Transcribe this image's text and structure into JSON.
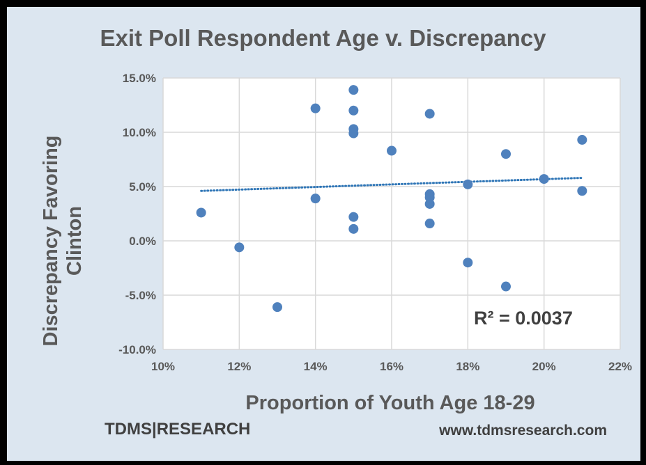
{
  "chart_data": {
    "type": "scatter",
    "title": "Exit Poll Respondent Age v. Discrepancy",
    "xlabel": "Proportion of Youth Age 18-29",
    "ylabel": "Discrepancy Favoring Clinton",
    "xlim": [
      0.1,
      0.22
    ],
    "ylim": [
      -0.1,
      0.15
    ],
    "x_ticks": [
      "10%",
      "12%",
      "14%",
      "16%",
      "18%",
      "20%",
      "22%"
    ],
    "x_tick_values": [
      0.1,
      0.12,
      0.14,
      0.16,
      0.18,
      0.2,
      0.22
    ],
    "y_ticks": [
      "15.0%",
      "10.0%",
      "5.0%",
      "0.0%",
      "-5.0%",
      "-10.0%"
    ],
    "y_tick_values": [
      0.15,
      0.1,
      0.05,
      0.0,
      -0.05,
      -0.1
    ],
    "grid": true,
    "series": [
      {
        "points": [
          {
            "x": 0.11,
            "y": 0.026
          },
          {
            "x": 0.12,
            "y": -0.006
          },
          {
            "x": 0.13,
            "y": -0.061
          },
          {
            "x": 0.14,
            "y": 0.122
          },
          {
            "x": 0.14,
            "y": 0.039
          },
          {
            "x": 0.15,
            "y": 0.139
          },
          {
            "x": 0.15,
            "y": 0.12
          },
          {
            "x": 0.15,
            "y": 0.103
          },
          {
            "x": 0.15,
            "y": 0.099
          },
          {
            "x": 0.15,
            "y": 0.022
          },
          {
            "x": 0.15,
            "y": 0.011
          },
          {
            "x": 0.16,
            "y": 0.083
          },
          {
            "x": 0.17,
            "y": 0.117
          },
          {
            "x": 0.17,
            "y": 0.043
          },
          {
            "x": 0.17,
            "y": 0.04
          },
          {
            "x": 0.17,
            "y": 0.034
          },
          {
            "x": 0.17,
            "y": 0.016
          },
          {
            "x": 0.18,
            "y": 0.052
          },
          {
            "x": 0.18,
            "y": -0.02
          },
          {
            "x": 0.19,
            "y": 0.08
          },
          {
            "x": 0.19,
            "y": -0.042
          },
          {
            "x": 0.2,
            "y": 0.057
          },
          {
            "x": 0.21,
            "y": 0.093
          },
          {
            "x": 0.21,
            "y": 0.046
          }
        ],
        "color": "#4f81bd"
      }
    ],
    "trendline": {
      "type": "linear",
      "x": [
        0.11,
        0.21
      ],
      "y": [
        0.046,
        0.058
      ],
      "color": "#2e75b6",
      "style": "dotted"
    },
    "annotation": "R² = 0.0037"
  },
  "footer": {
    "brand": "TDMS|RESEARCH",
    "website": "www.tdmsresearch.com"
  }
}
